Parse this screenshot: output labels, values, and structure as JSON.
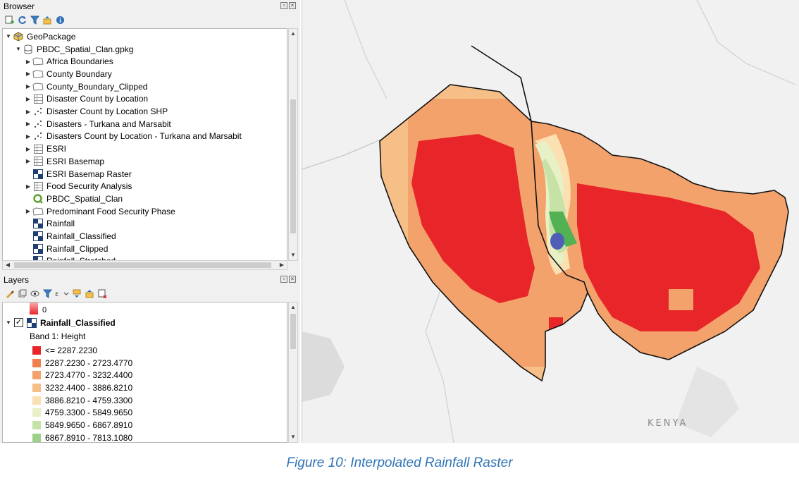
{
  "browser": {
    "title": "Browser",
    "items": [
      {
        "label": "GeoPackage",
        "level": 0,
        "caret": "open",
        "icon": "geopackage-icon"
      },
      {
        "label": "PBDC_Spatial_Clan.gpkg",
        "level": 1,
        "caret": "open",
        "icon": "database-icon"
      },
      {
        "label": "Africa Boundaries",
        "level": 2,
        "caret": "closed",
        "icon": "polygon-layer-icon"
      },
      {
        "label": "County Boundary",
        "level": 2,
        "caret": "closed",
        "icon": "polygon-layer-icon"
      },
      {
        "label": "County_Boundary_Clipped",
        "level": 2,
        "caret": "closed",
        "icon": "polygon-layer-icon"
      },
      {
        "label": "Disaster Count by Location",
        "level": 2,
        "caret": "closed",
        "icon": "table-icon"
      },
      {
        "label": "Disaster Count by Location SHP",
        "level": 2,
        "caret": "closed",
        "icon": "point-layer-icon"
      },
      {
        "label": "Disasters - Turkana and Marsabit",
        "level": 2,
        "caret": "closed",
        "icon": "point-layer-icon"
      },
      {
        "label": "Disasters Count by Location - Turkana and Marsabit",
        "level": 2,
        "caret": "closed",
        "icon": "point-layer-icon"
      },
      {
        "label": "ESRI",
        "level": 2,
        "caret": "closed",
        "icon": "table-icon"
      },
      {
        "label": "ESRI Basemap",
        "level": 2,
        "caret": "closed",
        "icon": "table-icon"
      },
      {
        "label": "ESRI Basemap Raster",
        "level": 2,
        "caret": "none",
        "icon": "raster-icon"
      },
      {
        "label": "Food Security Analysis",
        "level": 2,
        "caret": "closed",
        "icon": "table-icon"
      },
      {
        "label": "PBDC_Spatial_Clan",
        "level": 2,
        "caret": "none",
        "icon": "qgis-project-icon"
      },
      {
        "label": "Predominant Food Security Phase",
        "level": 2,
        "caret": "closed",
        "icon": "polygon-layer-icon"
      },
      {
        "label": "Rainfall",
        "level": 2,
        "caret": "none",
        "icon": "raster-icon"
      },
      {
        "label": "Rainfall_Classified",
        "level": 2,
        "caret": "none",
        "icon": "raster-icon"
      },
      {
        "label": "Rainfall_Clipped",
        "level": 2,
        "caret": "none",
        "icon": "raster-icon"
      },
      {
        "label": "Rainfall_Stretched",
        "level": 2,
        "caret": "none",
        "icon": "raster-icon"
      }
    ]
  },
  "layers": {
    "title": "Layers",
    "prev_legend_value": "0",
    "layer_name": "Rainfall_Classified",
    "band_label": "Band 1: Height",
    "classes": [
      {
        "label": "<= 2287.2230",
        "color": "#e8262a"
      },
      {
        "label": "2287.2230 - 2723.4770",
        "color": "#f07f4f"
      },
      {
        "label": "2723.4770 - 3232.4400",
        "color": "#f4a26c"
      },
      {
        "label": "3232.4400 - 3886.8210",
        "color": "#f7bf88"
      },
      {
        "label": "3886.8210 - 4759.3300",
        "color": "#fbe0b1"
      },
      {
        "label": "4759.3300 - 5849.9650",
        "color": "#e8f0c6"
      },
      {
        "label": "5849.9650 - 6867.8910",
        "color": "#c7e2a6"
      },
      {
        "label": "6867.8910 - 7813.1080",
        "color": "#9fd089"
      }
    ]
  },
  "map": {
    "country_label": "KENYA"
  },
  "caption": "Figure 10: Interpolated Rainfall Raster"
}
